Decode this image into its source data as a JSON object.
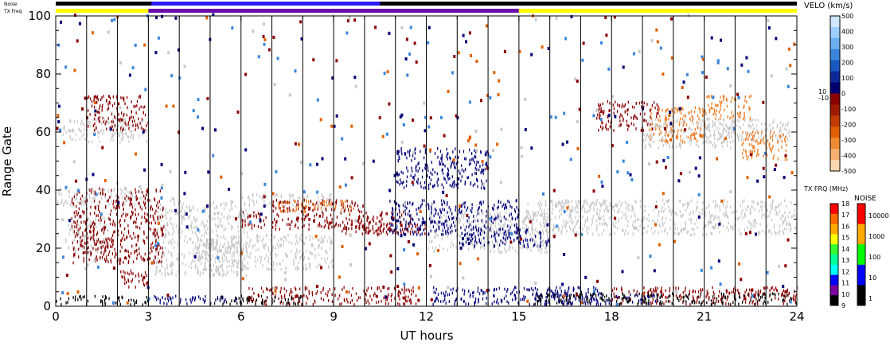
{
  "chart_data": {
    "type": "heatmap",
    "title": "",
    "xlabel": "UT hours",
    "ylabel": "Range Gate",
    "xlim": [
      0,
      24
    ],
    "ylim": [
      0,
      100
    ],
    "xticks": [
      "0",
      "3",
      "6",
      "9",
      "12",
      "15",
      "18",
      "21",
      "24"
    ],
    "yticks": [
      "0",
      "20",
      "40",
      "60",
      "80",
      "100"
    ],
    "grid": "vertical lines at each hour",
    "top_bars": {
      "noise_label": "Noise",
      "txfreq_label": "TX Freq",
      "txfreq_segments": [
        {
          "start": 0,
          "end": 3,
          "color": "#ffff00",
          "freq_mhz": 16
        },
        {
          "start": 3,
          "end": 15,
          "color": "#6a0dad",
          "freq_mhz": 10
        },
        {
          "start": 15,
          "end": 24,
          "color": "#ffff00",
          "freq_mhz": 16
        }
      ]
    },
    "velocity_scale": {
      "title": "VELO (km/s)",
      "labels": [
        "500",
        "400",
        "300",
        "200",
        "100",
        "0",
        "-100",
        "-200",
        "-300",
        "-400",
        "-500"
      ],
      "gap_labels": [
        "10",
        "-10"
      ],
      "colors": [
        "#cfe8ff",
        "#9ccfff",
        "#6aaef0",
        "#3a86dc",
        "#1858c0",
        "#0c2896",
        "#000070",
        "#8b0000",
        "#a01a00",
        "#c23a00",
        "#e06000",
        "#f08a30",
        "#f6b070",
        "#fbd7b0"
      ],
      "ground_scatter_color": "#c8c8c8"
    },
    "txfreq_scale": {
      "title": "TX FRQ (MHz)",
      "labels": [
        "18",
        "17",
        "16",
        "15",
        "14",
        "13",
        "12",
        "11",
        "10",
        "9"
      ],
      "colors": [
        "#ff0000",
        "#ff6a00",
        "#ffaa00",
        "#ffff00",
        "#33ff33",
        "#00ff99",
        "#00ffff",
        "#0000ff",
        "#7a00a0",
        "#000000"
      ]
    },
    "noise_scale": {
      "title": "NOISE",
      "labels": [
        "10000",
        "1000",
        "100",
        "10",
        "1"
      ],
      "colors": [
        "#ff0000",
        "#ffaa00",
        "#00ff00",
        "#0000ff",
        "#000000"
      ]
    },
    "regions": [
      {
        "name": "ground scatter",
        "color": "#c8c8c8",
        "segments": [
          [
            0.2,
            56,
            2.8,
            8
          ],
          [
            0,
            34,
            3,
            6
          ],
          [
            0.3,
            18,
            1.4,
            12
          ],
          [
            3.2,
            10,
            3,
            26
          ],
          [
            4.5,
            12,
            4.5,
            12
          ],
          [
            6,
            34,
            3,
            4
          ],
          [
            12,
            18,
            4,
            14
          ],
          [
            15.2,
            24,
            8.8,
            12
          ],
          [
            16,
            32,
            2,
            4
          ],
          [
            19,
            54,
            3,
            10
          ],
          [
            21,
            56,
            2.8,
            8
          ]
        ]
      },
      {
        "name": "red scatter",
        "color": "#8b0000",
        "segments": [
          [
            6,
            26,
            0.8,
            6
          ],
          [
            7,
            26,
            3,
            10
          ],
          [
            10,
            24,
            1.5,
            8
          ],
          [
            6.2,
            0,
            5.5,
            6
          ],
          [
            1,
            60,
            2,
            12
          ],
          [
            0.5,
            14,
            3,
            26
          ],
          [
            2,
            6,
            1,
            6
          ],
          [
            18,
            0,
            6,
            6
          ],
          [
            17.5,
            60,
            2,
            10
          ],
          [
            9,
            24,
            3,
            4
          ]
        ]
      },
      {
        "name": "blue scatter",
        "color": "#00007a",
        "segments": [
          [
            10.8,
            24,
            4.2,
            12
          ],
          [
            12.2,
            0,
            5.5,
            6
          ],
          [
            11,
            40,
            3,
            14
          ],
          [
            3,
            0,
            3,
            3
          ],
          [
            15.5,
            0,
            4,
            4
          ],
          [
            13,
            20,
            3,
            6
          ]
        ]
      },
      {
        "name": "orange scatter",
        "color": "#f07a20",
        "segments": [
          [
            7.2,
            32,
            2.5,
            4
          ],
          [
            19.2,
            56,
            1.8,
            12
          ],
          [
            22.2,
            50,
            1.5,
            10
          ],
          [
            21,
            64,
            1.5,
            8
          ]
        ]
      },
      {
        "name": "black noise",
        "color": "#000000",
        "segments": [
          [
            0,
            0,
            3,
            3
          ],
          [
            5,
            0,
            3,
            3
          ],
          [
            15.5,
            0,
            8.5,
            4
          ]
        ]
      }
    ]
  }
}
